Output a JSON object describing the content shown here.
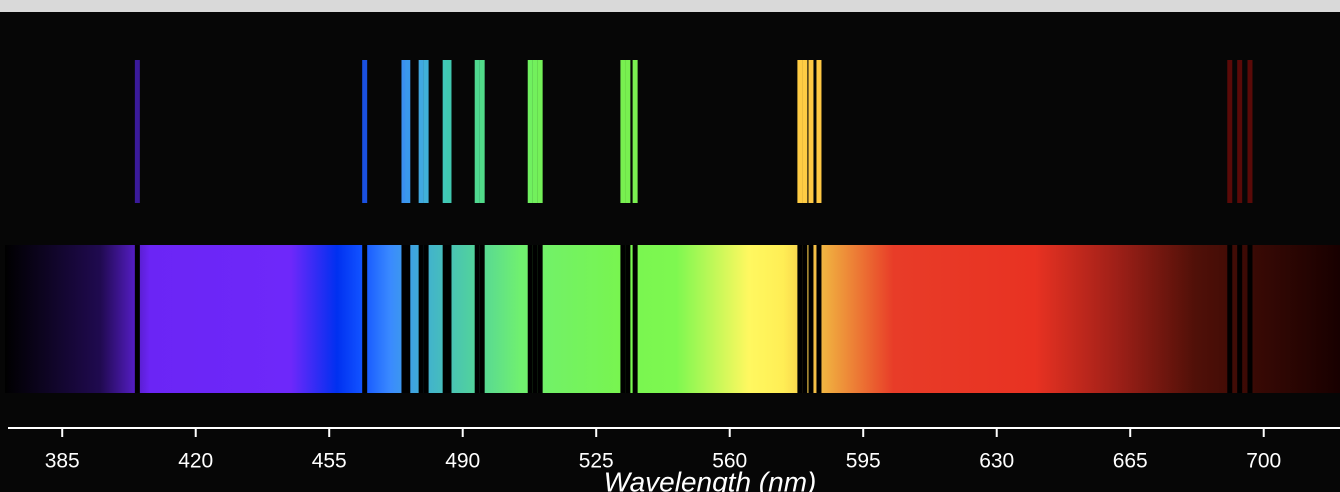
{
  "chart_data": {
    "type": "spectrum",
    "x_label": "Wavelength (nm)",
    "xlim": [
      370,
      720
    ],
    "xticks": [
      385,
      420,
      455,
      490,
      525,
      560,
      595,
      630,
      665,
      700
    ],
    "lines": {
      "x": [
        404.7,
        464.3,
        474.6,
        475.6,
        479.1,
        480.4,
        485.4,
        486.4,
        493.8,
        495.1,
        507.7,
        509,
        510.3,
        532,
        533.3,
        535.2,
        578.4,
        579.7,
        581.3,
        583.4,
        691.1,
        693.7,
        696.4
      ],
      "colors": [
        "#3a1a9a",
        "#1a50e0",
        "#3a90f0",
        "#3a98ec",
        "#40a8e0",
        "#40b0d8",
        "#40c8b8",
        "#40c8b0",
        "#50d890",
        "#50da88",
        "#70f060",
        "#72f05c",
        "#74f058",
        "#78f050",
        "#78f050",
        "#7af050",
        "#ffcc44",
        "#ffcc44",
        "#ffc844",
        "#ffc844",
        "#5a0a08",
        "#5a0a08",
        "#5a0a08"
      ]
    },
    "spectrum": [
      {
        "x": 370,
        "color": "#000000"
      },
      {
        "x": 395,
        "color": "#200a50"
      },
      {
        "x": 408,
        "color": "#6b25f5"
      },
      {
        "x": 445,
        "color": "#6e28fa"
      },
      {
        "x": 457,
        "color": "#0030f0"
      },
      {
        "x": 463,
        "color": "#1050ff"
      },
      {
        "x": 471,
        "color": "#3a8aff"
      },
      {
        "x": 480,
        "color": "#40b0d0"
      },
      {
        "x": 492,
        "color": "#50d0a0"
      },
      {
        "x": 505,
        "color": "#70f070"
      },
      {
        "x": 531,
        "color": "#78f550"
      },
      {
        "x": 546,
        "color": "#7ef850"
      },
      {
        "x": 565,
        "color": "#fff860"
      },
      {
        "x": 574,
        "color": "#ffee55"
      },
      {
        "x": 585,
        "color": "#f0b040"
      },
      {
        "x": 603,
        "color": "#e83c28"
      },
      {
        "x": 640,
        "color": "#e83222"
      },
      {
        "x": 661,
        "color": "#a02018"
      },
      {
        "x": 682,
        "color": "#501008"
      },
      {
        "x": 720,
        "color": "#180000"
      }
    ]
  }
}
